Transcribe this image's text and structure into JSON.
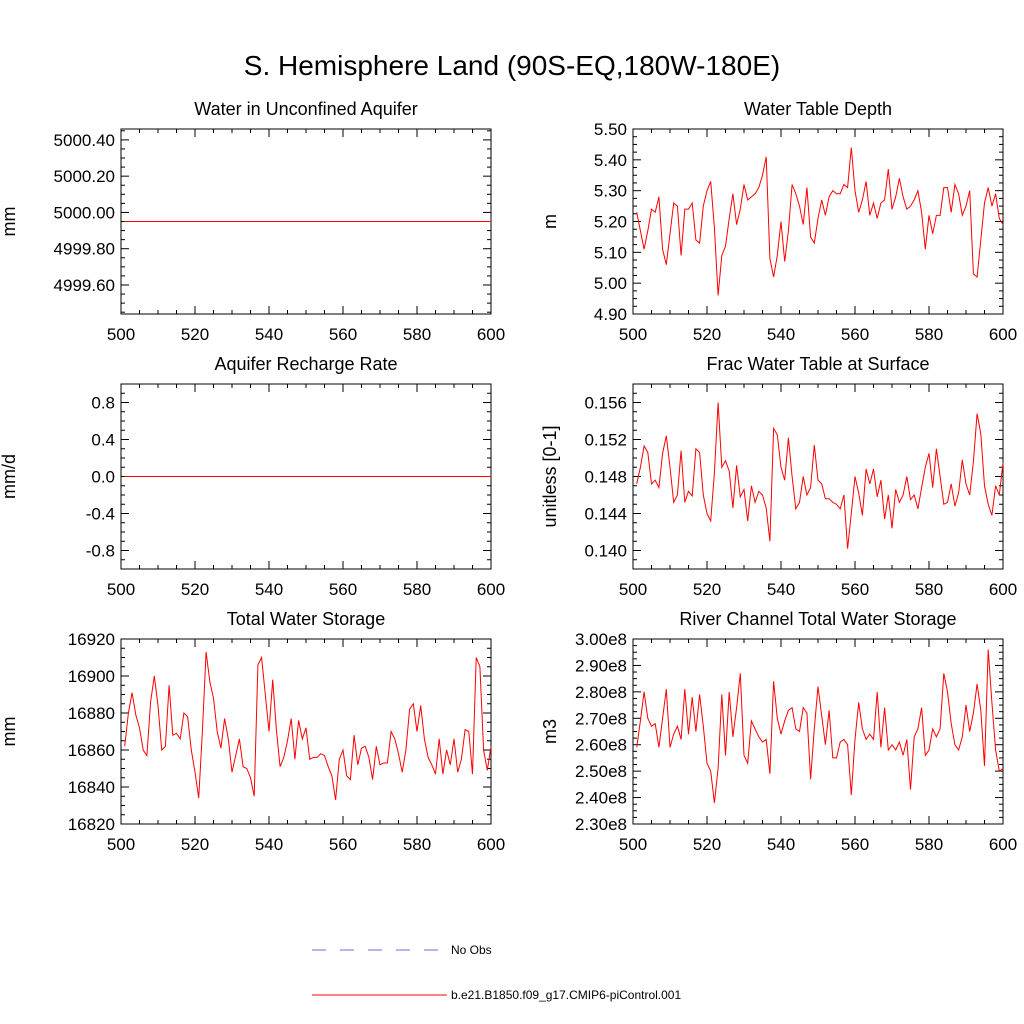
{
  "title": "S. Hemisphere Land (90S-EQ,180W-180E)",
  "legend": {
    "obs_label": "No Obs",
    "model_label": "b.e21.B1850.f09_g17.CMIP6-piControl.001",
    "obs_color": "#6b6bd6",
    "model_color": "#ff0000"
  },
  "chart_data": [
    {
      "type": "line",
      "title": "Water in Unconfined Aquifer",
      "ylabel": "mm",
      "xlim": [
        500,
        600
      ],
      "ylim": [
        4999.44,
        5000.46
      ],
      "xticks": [
        500,
        520,
        540,
        560,
        580,
        600
      ],
      "xtick_labels": [
        "500",
        "520",
        "540",
        "560",
        "580",
        "600"
      ],
      "yticks": [
        4999.6,
        4999.8,
        5000.0,
        5000.2,
        5000.4
      ],
      "ytick_labels": [
        "4999.60",
        "4999.80",
        "5000.00",
        "5000.20",
        "5000.40"
      ],
      "x_start": 501,
      "values": "const:4999.95:100"
    },
    {
      "type": "line",
      "title": "Water Table Depth",
      "ylabel": "m",
      "xlim": [
        500,
        600
      ],
      "ylim": [
        4.9,
        5.5
      ],
      "xticks": [
        500,
        520,
        540,
        560,
        580,
        600
      ],
      "xtick_labels": [
        "500",
        "520",
        "540",
        "560",
        "580",
        "600"
      ],
      "yticks": [
        4.9,
        5.0,
        5.1,
        5.2,
        5.3,
        5.4,
        5.5
      ],
      "ytick_labels": [
        "4.90",
        "5.00",
        "5.10",
        "5.20",
        "5.30",
        "5.40",
        "5.50"
      ],
      "x_start": 501,
      "values": [
        5.23,
        5.17,
        5.11,
        5.17,
        5.24,
        5.23,
        5.28,
        5.11,
        5.06,
        5.16,
        5.26,
        5.25,
        5.09,
        5.24,
        5.24,
        5.26,
        5.14,
        5.13,
        5.25,
        5.3,
        5.33,
        5.18,
        4.96,
        5.09,
        5.12,
        5.21,
        5.29,
        5.19,
        5.24,
        5.32,
        5.27,
        5.28,
        5.29,
        5.31,
        5.35,
        5.41,
        5.08,
        5.02,
        5.09,
        5.2,
        5.07,
        5.17,
        5.32,
        5.29,
        5.25,
        5.19,
        5.31,
        5.15,
        5.13,
        5.21,
        5.27,
        5.22,
        5.28,
        5.3,
        5.29,
        5.29,
        5.32,
        5.31,
        5.44,
        5.3,
        5.23,
        5.27,
        5.33,
        5.22,
        5.26,
        5.21,
        5.26,
        5.27,
        5.37,
        5.24,
        5.28,
        5.34,
        5.28,
        5.24,
        5.25,
        5.27,
        5.3,
        5.23,
        5.11,
        5.22,
        5.16,
        5.22,
        5.22,
        5.31,
        5.31,
        5.23,
        5.32,
        5.29,
        5.22,
        5.25,
        5.3,
        5.03,
        5.02,
        5.14,
        5.26,
        5.31,
        5.25,
        5.29,
        5.21,
        5.19
      ]
    },
    {
      "type": "line",
      "title": "Aquifer Recharge Rate",
      "ylabel": "mm/d",
      "xlim": [
        500,
        600
      ],
      "ylim": [
        -1.0,
        1.0
      ],
      "xticks": [
        500,
        520,
        540,
        560,
        580,
        600
      ],
      "xtick_labels": [
        "500",
        "520",
        "540",
        "560",
        "580",
        "600"
      ],
      "yticks": [
        -0.8,
        -0.4,
        0.0,
        0.4,
        0.8
      ],
      "ytick_labels": [
        "-0.8",
        "-0.4",
        "0.0",
        "0.4",
        "0.8"
      ],
      "x_start": 501,
      "values": "const:0:100"
    },
    {
      "type": "line",
      "title": "Frac Water Table at Surface",
      "ylabel": "unitless [0-1]",
      "xlim": [
        500,
        600
      ],
      "ylim": [
        0.138,
        0.158
      ],
      "xticks": [
        500,
        520,
        540,
        560,
        580,
        600
      ],
      "xtick_labels": [
        "500",
        "520",
        "540",
        "560",
        "580",
        "600"
      ],
      "yticks": [
        0.14,
        0.144,
        0.148,
        0.152,
        0.156
      ],
      "ytick_labels": [
        "0.140",
        "0.144",
        "0.148",
        "0.152",
        "0.156"
      ],
      "x_start": 501,
      "values": [
        0.1472,
        0.149,
        0.1513,
        0.1506,
        0.1472,
        0.1476,
        0.1468,
        0.1505,
        0.1524,
        0.149,
        0.1452,
        0.146,
        0.1508,
        0.1452,
        0.1464,
        0.1459,
        0.151,
        0.1506,
        0.146,
        0.144,
        0.1432,
        0.1484,
        0.156,
        0.149,
        0.1497,
        0.1486,
        0.1446,
        0.1492,
        0.1458,
        0.1466,
        0.1432,
        0.147,
        0.1452,
        0.1464,
        0.146,
        0.1446,
        0.141,
        0.1532,
        0.1525,
        0.149,
        0.1476,
        0.1522,
        0.148,
        0.1445,
        0.1452,
        0.148,
        0.146,
        0.1468,
        0.1514,
        0.1476,
        0.1472,
        0.1456,
        0.1456,
        0.1452,
        0.145,
        0.1445,
        0.146,
        0.1402,
        0.144,
        0.148,
        0.1462,
        0.1438,
        0.1488,
        0.1472,
        0.1488,
        0.1458,
        0.1476,
        0.1434,
        0.146,
        0.1424,
        0.1466,
        0.1452,
        0.146,
        0.148,
        0.1455,
        0.146,
        0.1445,
        0.1468,
        0.149,
        0.1505,
        0.1468,
        0.151,
        0.148,
        0.145,
        0.1452,
        0.1472,
        0.1448,
        0.1462,
        0.1498,
        0.1472,
        0.146,
        0.1496,
        0.1548,
        0.1526,
        0.147,
        0.145,
        0.1438,
        0.147,
        0.146,
        0.1495
      ]
    },
    {
      "type": "line",
      "title": "Total Water Storage",
      "ylabel": "mm",
      "xlim": [
        500,
        600
      ],
      "ylim": [
        16820,
        16920
      ],
      "xticks": [
        500,
        520,
        540,
        560,
        580,
        600
      ],
      "xtick_labels": [
        "500",
        "520",
        "540",
        "560",
        "580",
        "600"
      ],
      "yticks": [
        16820,
        16840,
        16860,
        16880,
        16900,
        16920
      ],
      "ytick_labels": [
        "16820",
        "16840",
        "16860",
        "16880",
        "16900",
        "16920"
      ],
      "x_start": 501,
      "values": [
        16862,
        16880,
        16891,
        16879,
        16872,
        16860,
        16857,
        16886,
        16900,
        16884,
        16860,
        16862,
        16895,
        16868,
        16869,
        16866,
        16880,
        16878,
        16860,
        16848,
        16834,
        16870,
        16913,
        16897,
        16888,
        16870,
        16861,
        16877,
        16866,
        16848,
        16857,
        16866,
        16851,
        16850,
        16845,
        16835,
        16906,
        16910,
        16890,
        16870,
        16898,
        16871,
        16851,
        16856,
        16865,
        16877,
        16855,
        16876,
        16866,
        16872,
        16855,
        16856,
        16856,
        16858,
        16857,
        16851,
        16846,
        16833,
        16855,
        16860,
        16846,
        16844,
        16868,
        16852,
        16861,
        16862,
        16856,
        16844,
        16862,
        16852,
        16853,
        16853,
        16870,
        16866,
        16858,
        16848,
        16860,
        16882,
        16885,
        16870,
        16884,
        16866,
        16856,
        16852,
        16847,
        16866,
        16847,
        16860,
        16852,
        16866,
        16848,
        16855,
        16871,
        16870,
        16847,
        16910,
        16905,
        16860,
        16849,
        16862
      ]
    },
    {
      "type": "line",
      "title": "River Channel Total Water Storage",
      "ylabel": "m3",
      "xlim": [
        500,
        600
      ],
      "ylim": [
        230000000.0,
        300000000.0
      ],
      "xticks": [
        500,
        520,
        540,
        560,
        580,
        600
      ],
      "xtick_labels": [
        "500",
        "520",
        "540",
        "560",
        "580",
        "600"
      ],
      "yticks": [
        230000000.0,
        240000000.0,
        250000000.0,
        260000000.0,
        270000000.0,
        280000000.0,
        290000000.0,
        300000000.0
      ],
      "ytick_labels": [
        "2.30e8",
        "2.40e8",
        "2.50e8",
        "2.60e8",
        "2.70e8",
        "2.80e8",
        "2.90e8",
        "3.00e8"
      ],
      "x_start": 501,
      "values": [
        259000000.0,
        269000000.0,
        280000000.0,
        270000000.0,
        267000000.0,
        268000000.0,
        259000000.0,
        270000000.0,
        281000000.0,
        259000000.0,
        264000000.0,
        267000000.0,
        262000000.0,
        281000000.0,
        264000000.0,
        278000000.0,
        265000000.0,
        279000000.0,
        267000000.0,
        253000000.0,
        250000000.0,
        238000000.0,
        251000000.0,
        279000000.0,
        256000000.0,
        280000000.0,
        263000000.0,
        274000000.0,
        287000000.0,
        256000000.0,
        253000000.0,
        269000000.0,
        266000000.0,
        263000000.0,
        261000000.0,
        262000000.0,
        249000000.0,
        284000000.0,
        270000000.0,
        264000000.0,
        269000000.0,
        273000000.0,
        274000000.0,
        266000000.0,
        265000000.0,
        274000000.0,
        272000000.0,
        247000000.0,
        266000000.0,
        282000000.0,
        271000000.0,
        260000000.0,
        273000000.0,
        255000000.0,
        255000000.0,
        261000000.0,
        262000000.0,
        260000000.0,
        241000000.0,
        262000000.0,
        276000000.0,
        266000000.0,
        262000000.0,
        264000000.0,
        262000000.0,
        280000000.0,
        259000000.0,
        274000000.0,
        258000000.0,
        260000000.0,
        258000000.0,
        261000000.0,
        256000000.0,
        262000000.0,
        243000000.0,
        263000000.0,
        266000000.0,
        274000000.0,
        256000000.0,
        258000000.0,
        266000000.0,
        263000000.0,
        266000000.0,
        287000000.0,
        280000000.0,
        268000000.0,
        260000000.0,
        258000000.0,
        263000000.0,
        275000000.0,
        265000000.0,
        272000000.0,
        283000000.0,
        273000000.0,
        252000000.0,
        296000000.0,
        276000000.0,
        258000000.0,
        250000000.0,
        251000000.0
      ]
    }
  ]
}
